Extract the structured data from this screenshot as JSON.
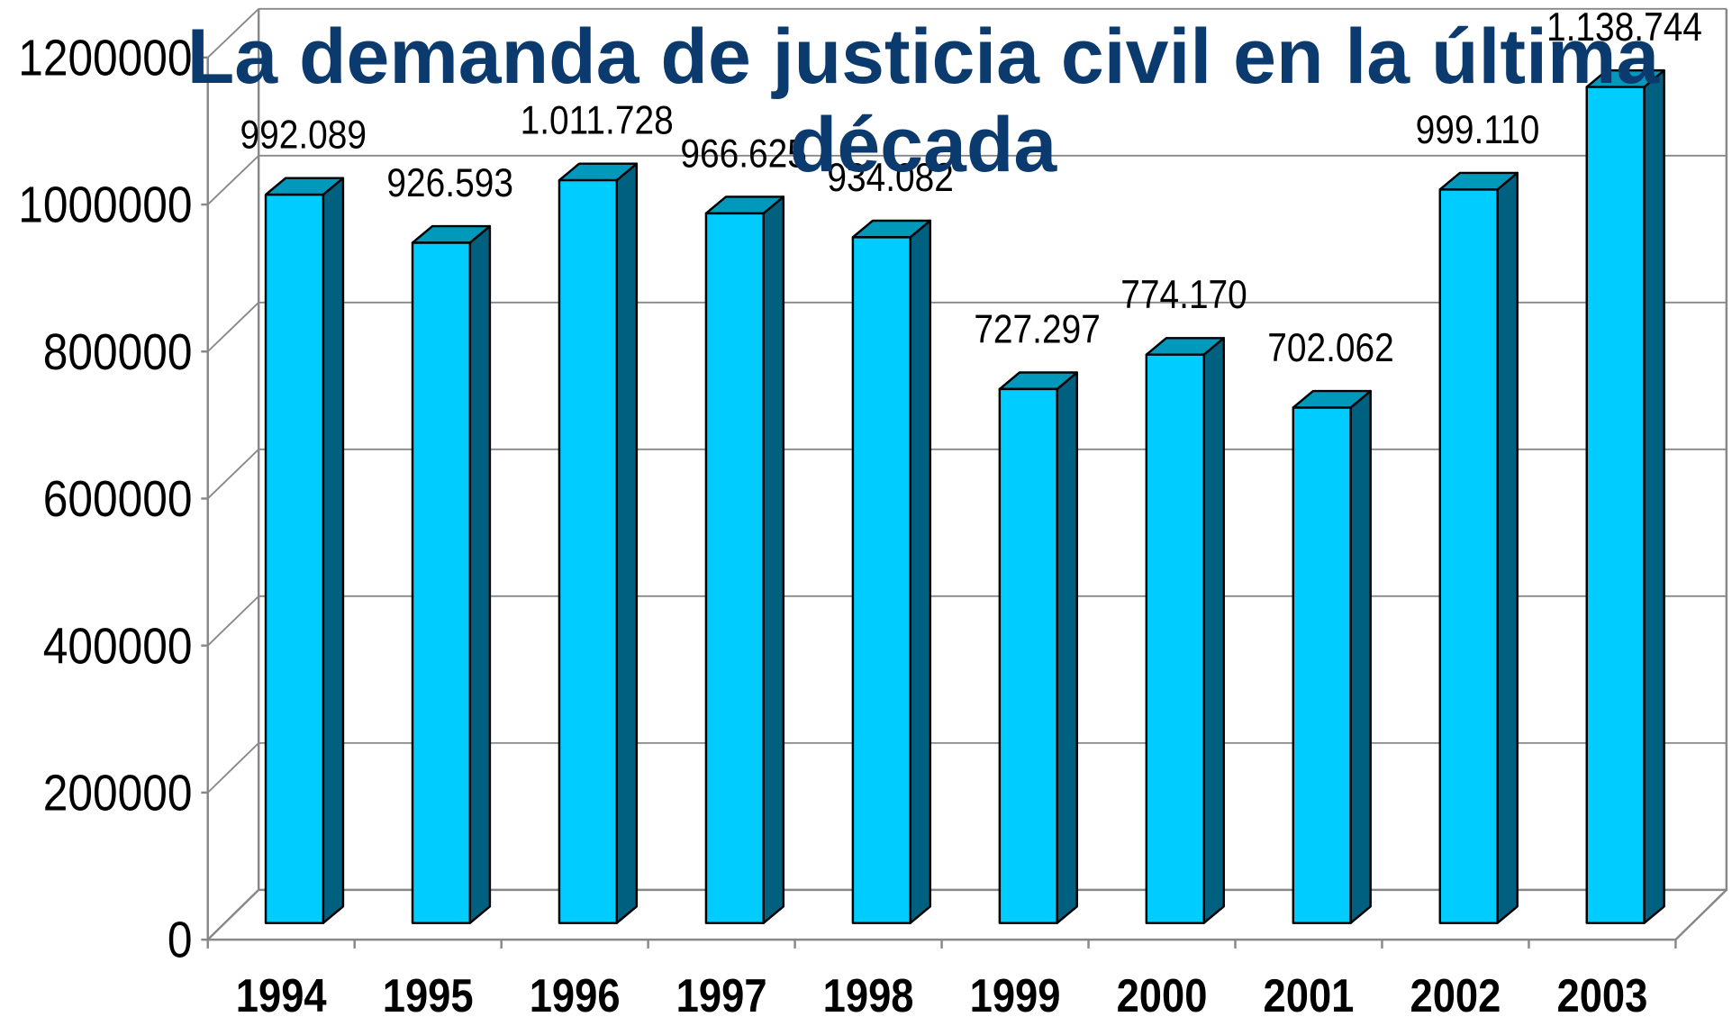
{
  "chart_data": {
    "type": "bar3d",
    "title": "La demanda de justicia civil en la última década",
    "categories": [
      "1994",
      "1995",
      "1996",
      "1997",
      "1998",
      "1999",
      "2000",
      "2001",
      "2002",
      "2003"
    ],
    "values": [
      992089,
      926593,
      1011728,
      966625,
      934082,
      727297,
      774170,
      702062,
      999110,
      1138744
    ],
    "value_labels": [
      "992.089",
      "926.593",
      "1.011.728",
      "966.625",
      "934.082",
      "727.297",
      "774.170",
      "702.062",
      "999.110",
      "1.138.744"
    ],
    "color": "#00ccff",
    "ylim": [
      0,
      1200000
    ],
    "yticks": [
      0,
      200000,
      400000,
      600000,
      800000,
      1000000,
      1200000
    ],
    "grid": true
  }
}
